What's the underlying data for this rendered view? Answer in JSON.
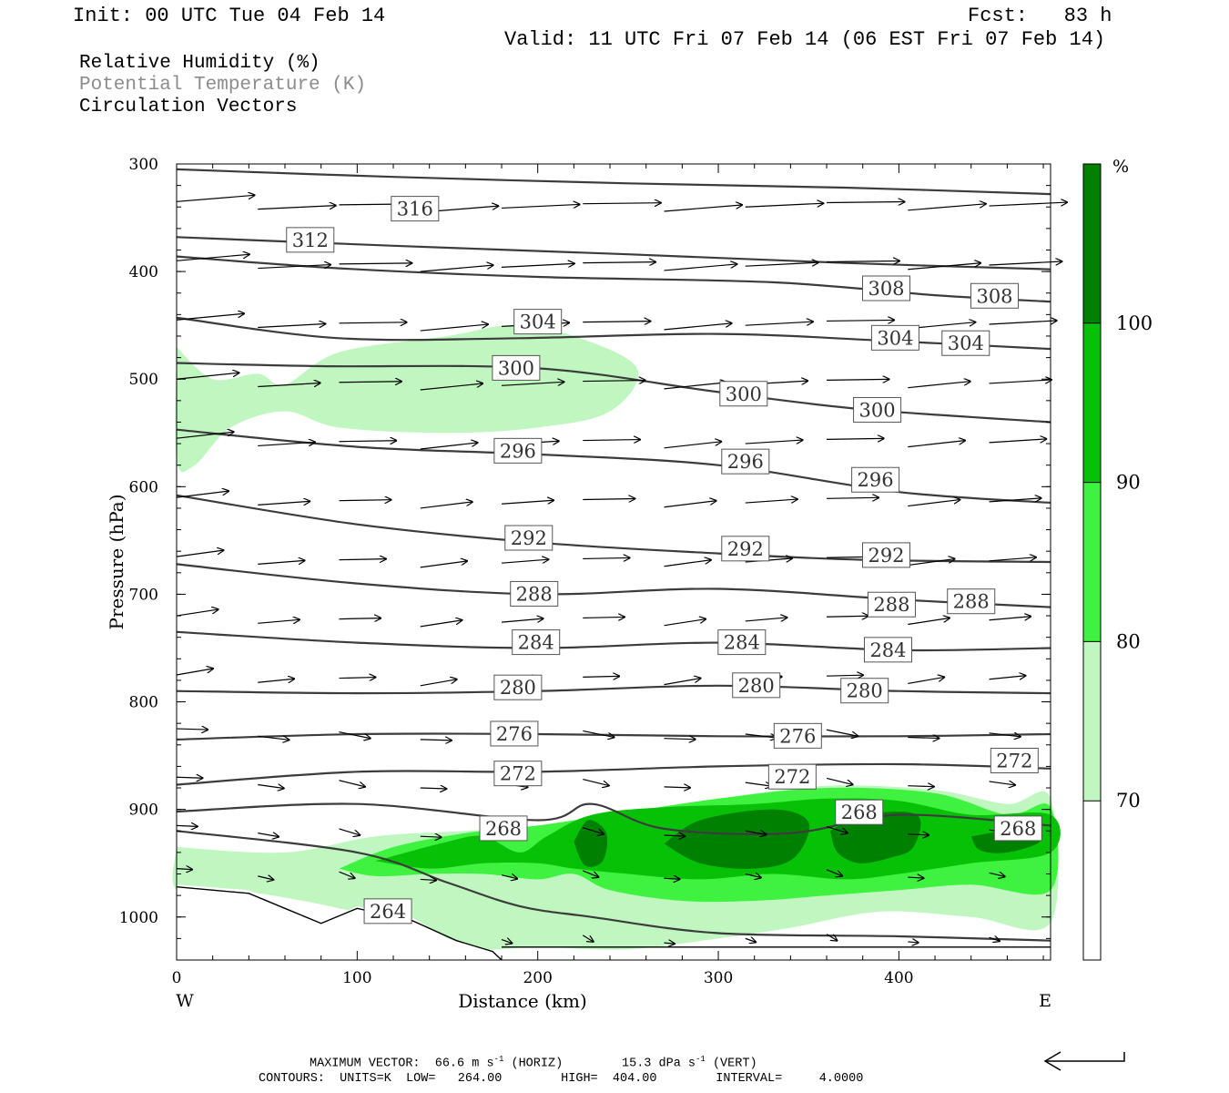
{
  "header": {
    "init": "Init: 00 UTC Tue 04 Feb 14",
    "fcst": "Fcst:   83 h",
    "valid": "Valid: 11 UTC Fri 07 Feb 14 (06 EST Fri 07 Feb 14)",
    "field1": "Relative Humidity (%)",
    "field2": "Potential Temperature (K)",
    "field3": "Circulation Vectors"
  },
  "colors": {
    "rh70": "#c0f7c0",
    "rh80": "#3ff23f",
    "rh90": "#07c107",
    "rh100": "#008000",
    "contour": "#3c3c3c",
    "field2_text": "#8c8c8c"
  },
  "chart_data": {
    "type": "heatmap",
    "title": "Relative Humidity (%)",
    "xlabel": "Distance (km)",
    "ylabel": "Pressure (hPa)",
    "xlim": [
      0,
      484
    ],
    "ylim": [
      1040,
      300
    ],
    "x_ticks": [
      0,
      100,
      200,
      300,
      400
    ],
    "y_ticks": [
      300,
      400,
      500,
      600,
      700,
      800,
      900,
      1000
    ],
    "x_end_labels": {
      "left": "W",
      "right": "E"
    },
    "colorbar": {
      "unit": "%",
      "levels": [
        70,
        80,
        90,
        100
      ],
      "colors": [
        "#ffffff",
        "#c0f7c0",
        "#3ff23f",
        "#07c107",
        "#008000"
      ]
    },
    "theta_contours": [
      {
        "label": "316",
        "points": [
          [
            0,
            305
          ],
          [
            120,
            312
          ],
          [
            250,
            318
          ],
          [
            370,
            322
          ],
          [
            484,
            328
          ]
        ],
        "labels_at": [
          [
            132,
            342
          ]
        ]
      },
      {
        "label": "312",
        "points": [
          [
            0,
            368
          ],
          [
            120,
            376
          ],
          [
            250,
            384
          ],
          [
            370,
            392
          ],
          [
            484,
            398
          ]
        ],
        "labels_at": [
          [
            74,
            371
          ]
        ]
      },
      {
        "label": "308",
        "points": [
          [
            0,
            386
          ],
          [
            90,
            397
          ],
          [
            200,
            405
          ],
          [
            330,
            410
          ],
          [
            420,
            422
          ],
          [
            484,
            428
          ]
        ],
        "labels_at": [
          [
            393,
            416
          ],
          [
            453,
            423
          ]
        ]
      },
      {
        "label": "304",
        "points": [
          [
            0,
            443
          ],
          [
            90,
            462
          ],
          [
            190,
            462
          ],
          [
            300,
            458
          ],
          [
            400,
            465
          ],
          [
            484,
            472
          ]
        ],
        "labels_at": [
          [
            200,
            447
          ],
          [
            398,
            462
          ],
          [
            437,
            467
          ]
        ]
      },
      {
        "label": "300",
        "points": [
          [
            0,
            485
          ],
          [
            80,
            488
          ],
          [
            200,
            490
          ],
          [
            300,
            512
          ],
          [
            380,
            528
          ],
          [
            484,
            540
          ]
        ],
        "labels_at": [
          [
            188,
            490
          ],
          [
            314,
            514
          ],
          [
            388,
            529
          ]
        ]
      },
      {
        "label": "296",
        "points": [
          [
            0,
            547
          ],
          [
            100,
            563
          ],
          [
            200,
            570
          ],
          [
            300,
            580
          ],
          [
            400,
            605
          ],
          [
            484,
            615
          ]
        ],
        "labels_at": [
          [
            189,
            567
          ],
          [
            315,
            577
          ],
          [
            387,
            594
          ]
        ]
      },
      {
        "label": "292",
        "points": [
          [
            0,
            608
          ],
          [
            100,
            635
          ],
          [
            200,
            652
          ],
          [
            300,
            662
          ],
          [
            380,
            668
          ],
          [
            484,
            670
          ]
        ],
        "labels_at": [
          [
            195,
            648
          ],
          [
            315,
            658
          ],
          [
            393,
            664
          ]
        ]
      },
      {
        "label": "288",
        "points": [
          [
            0,
            672
          ],
          [
            100,
            690
          ],
          [
            200,
            700
          ],
          [
            300,
            695
          ],
          [
            400,
            705
          ],
          [
            484,
            712
          ]
        ],
        "labels_at": [
          [
            198,
            700
          ],
          [
            396,
            710
          ],
          [
            440,
            707
          ]
        ]
      },
      {
        "label": "284",
        "points": [
          [
            0,
            735
          ],
          [
            100,
            745
          ],
          [
            200,
            750
          ],
          [
            300,
            745
          ],
          [
            400,
            752
          ],
          [
            484,
            750
          ]
        ],
        "labels_at": [
          [
            199,
            745
          ],
          [
            313,
            745
          ],
          [
            394,
            752
          ]
        ]
      },
      {
        "label": "280",
        "points": [
          [
            0,
            790
          ],
          [
            100,
            792
          ],
          [
            200,
            790
          ],
          [
            300,
            785
          ],
          [
            400,
            790
          ],
          [
            484,
            792
          ]
        ],
        "labels_at": [
          [
            189,
            787
          ],
          [
            321,
            785
          ],
          [
            381,
            790
          ]
        ]
      },
      {
        "label": "276",
        "points": [
          [
            0,
            835
          ],
          [
            100,
            830
          ],
          [
            200,
            830
          ],
          [
            300,
            832
          ],
          [
            400,
            832
          ],
          [
            484,
            830
          ]
        ],
        "labels_at": [
          [
            187,
            830
          ],
          [
            344,
            832
          ]
        ]
      },
      {
        "label": "272",
        "points": [
          [
            0,
            877
          ],
          [
            100,
            865
          ],
          [
            200,
            865
          ],
          [
            300,
            860
          ],
          [
            400,
            858
          ],
          [
            484,
            862
          ]
        ],
        "labels_at": [
          [
            189,
            867
          ],
          [
            341,
            870
          ],
          [
            464,
            855
          ]
        ]
      },
      {
        "label": "268",
        "points": [
          [
            0,
            902
          ],
          [
            100,
            895
          ],
          [
            200,
            910
          ],
          [
            230,
            895
          ],
          [
            270,
            918
          ],
          [
            340,
            922
          ],
          [
            400,
            905
          ],
          [
            484,
            915
          ]
        ],
        "labels_at": [
          [
            181,
            918
          ],
          [
            378,
            903
          ],
          [
            466,
            918
          ]
        ]
      },
      {
        "label": "264",
        "points": [
          [
            0,
            920
          ],
          [
            100,
            940
          ],
          [
            150,
            968
          ],
          [
            190,
            990
          ],
          [
            230,
            1000
          ],
          [
            300,
            1015
          ],
          [
            400,
            1018
          ],
          [
            484,
            1022
          ]
        ],
        "labels_at": [
          [
            117,
            995
          ]
        ]
      }
    ],
    "vector_scale": {
      "horiz": "66.6 m s",
      "horiz_unit_note": "(HORIZ)",
      "vert": "15.3 dPa s",
      "vert_unit_note": "(VERT)"
    }
  },
  "footer": {
    "max_vector_label": "MAXIMUM VECTOR:",
    "horiz": "66.6 m s",
    "horiz_sup": "-1",
    "horiz_tail": "(HORIZ)",
    "vert": "15.3 dPa s",
    "vert_sup": "-1",
    "vert_tail": "(VERT)",
    "contours": "CONTOURS:  UNITS=K  LOW=   264.00        HIGH=  404.00        INTERVAL=     4.0000"
  }
}
